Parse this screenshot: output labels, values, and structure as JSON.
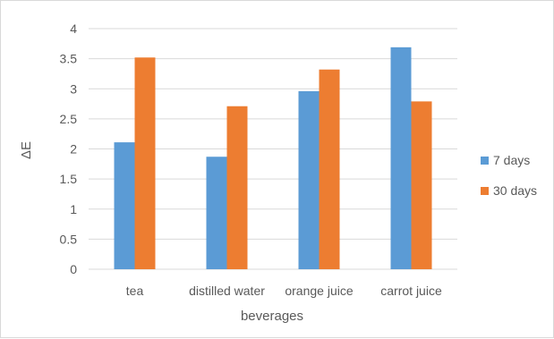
{
  "chart_data": {
    "type": "bar",
    "categories": [
      "tea",
      "distilled water",
      "orange juice",
      "carrot juice"
    ],
    "series": [
      {
        "name": "7 days",
        "values": [
          2.11,
          1.87,
          2.96,
          3.69
        ],
        "color": "#5b9bd5"
      },
      {
        "name": "30 days",
        "values": [
          3.52,
          2.71,
          3.32,
          2.79
        ],
        "color": "#ed7d31"
      }
    ],
    "title": "",
    "xlabel": "beverages",
    "ylabel": "ΔE",
    "ylim": [
      0,
      4
    ],
    "yticks": [
      "0",
      "0.5",
      "1",
      "1.5",
      "2",
      "2.5",
      "3",
      "3.5",
      "4"
    ],
    "grid": true,
    "legend_position": "right",
    "gridline_color": "#d9d9d9"
  }
}
